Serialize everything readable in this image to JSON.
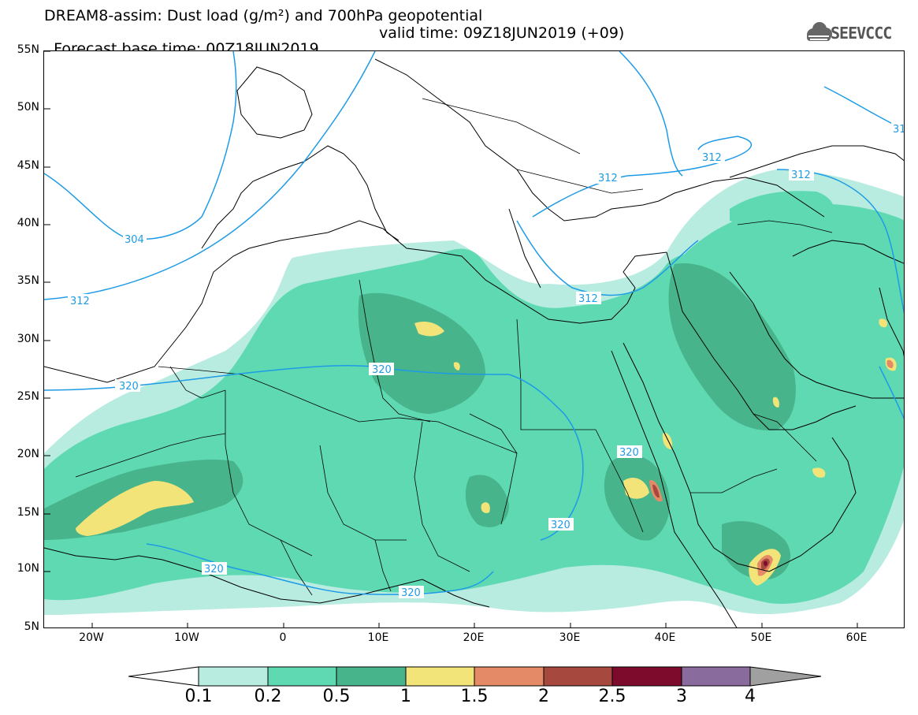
{
  "header": {
    "title_line1": "DREAM8-assim: Dust load (g/m²) and 700hPa geopotential",
    "title_line2_base": "Forecast base time: 00Z18JUN2019",
    "title_line2_valid": "valid time: 09Z18JUN2019 (+09)",
    "logo_text": "SEEVCCC",
    "logo_icon": "cloud-icon"
  },
  "map": {
    "lon_range": [
      -25,
      65
    ],
    "lat_range": [
      5,
      55
    ],
    "lat_labels": [
      "55N",
      "50N",
      "45N",
      "40N",
      "35N",
      "30N",
      "25N",
      "20N",
      "15N",
      "10N",
      "5N"
    ],
    "lon_labels": [
      "20W",
      "10W",
      "0",
      "10E",
      "20E",
      "30E",
      "40E",
      "50E",
      "60E"
    ],
    "contour_labels": [
      "304",
      "312",
      "312",
      "312",
      "312",
      "320",
      "320",
      "320",
      "320",
      "320",
      "320",
      "31"
    ],
    "colors": {
      "coast": "#000000",
      "contour": "#1e9be6",
      "level1": "#b8ece0",
      "level2": "#5fd9b2",
      "level3": "#47b48b",
      "level4": "#f3e47a",
      "level5": "#e58a66",
      "level6": "#a7483f",
      "level7": "#7d0b2c",
      "level8": "#8a6b9e",
      "over": "#a0a0a0"
    }
  },
  "colorbar": {
    "labels": [
      "0.1",
      "0.2",
      "0.5",
      "1",
      "1.5",
      "2",
      "2.5",
      "3",
      "4"
    ],
    "colors": [
      "#b8ece0",
      "#5fd9b2",
      "#47b48b",
      "#f3e47a",
      "#e58a66",
      "#a7483f",
      "#7d0b2c",
      "#8a6b9e"
    ],
    "under_color": "#ffffff",
    "over_color": "#a0a0a0"
  }
}
